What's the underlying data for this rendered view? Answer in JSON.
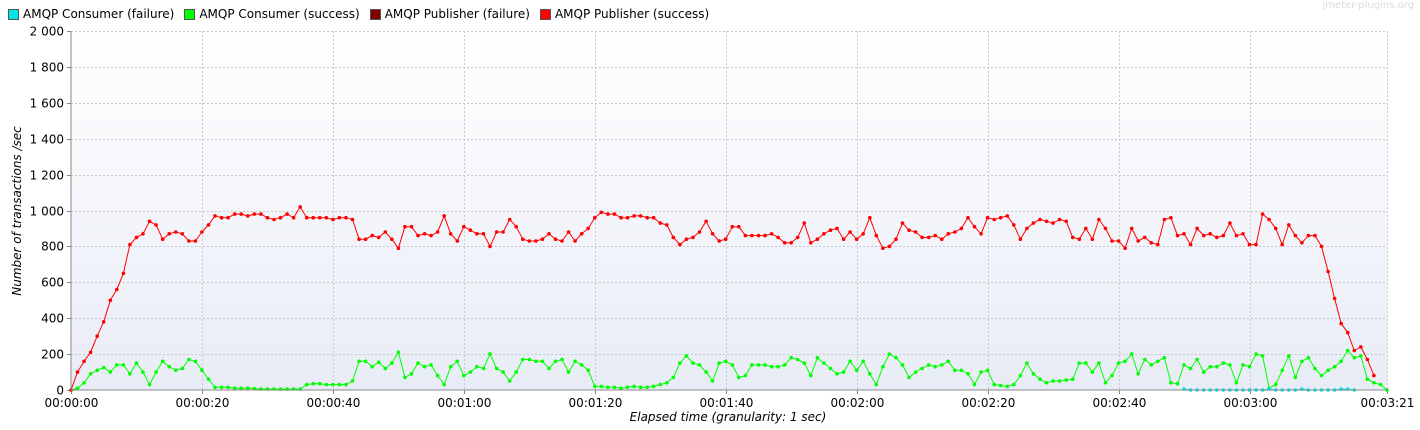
{
  "chart_data": {
    "type": "line",
    "watermark": "jmeter-plugins.org",
    "xlabel": "Elapsed time (granularity: 1 sec)",
    "ylabel": "Number of transactions /sec",
    "ylim": [
      0,
      2000
    ],
    "yticks": [
      0,
      200,
      400,
      600,
      800,
      1000,
      1200,
      1400,
      1600,
      1800,
      2000
    ],
    "ytick_labels": [
      "0",
      "200",
      "400",
      "600",
      "800",
      "1 000",
      "1 200",
      "1 400",
      "1 600",
      "1 800",
      "2 000"
    ],
    "xlim_seconds": [
      0,
      201
    ],
    "xticks_seconds": [
      0,
      20,
      40,
      60,
      80,
      100,
      120,
      140,
      160,
      180,
      201
    ],
    "xtick_labels": [
      "00:00:00",
      "00:00:20",
      "00:00:40",
      "00:01:00",
      "00:01:20",
      "00:01:40",
      "00:02:00",
      "00:02:20",
      "00:02:40",
      "00:03:00",
      "00:03:21"
    ],
    "grid": true,
    "legend_position": "top-left",
    "series": [
      {
        "name": "AMQP Consumer (failure)",
        "color": "#00e5e5",
        "x": [
          170,
          171,
          172,
          173,
          174,
          175,
          176,
          177,
          178,
          179,
          180,
          181,
          182,
          183,
          184,
          185,
          186,
          187,
          188,
          189,
          190,
          191,
          192,
          193,
          194,
          195,
          196
        ],
        "values": [
          5,
          0,
          0,
          0,
          0,
          0,
          0,
          0,
          0,
          0,
          0,
          0,
          0,
          5,
          0,
          0,
          0,
          0,
          5,
          0,
          0,
          0,
          0,
          0,
          5,
          5,
          0
        ]
      },
      {
        "name": "AMQP Consumer (success)",
        "color": "#00ff00",
        "values": [
          0,
          10,
          40,
          90,
          110,
          125,
          100,
          140,
          140,
          90,
          150,
          100,
          30,
          100,
          160,
          130,
          110,
          120,
          170,
          160,
          110,
          60,
          15,
          15,
          15,
          10,
          10,
          10,
          8,
          5,
          5,
          5,
          5,
          5,
          5,
          5,
          30,
          35,
          35,
          30,
          30,
          30,
          30,
          50,
          160,
          160,
          130,
          155,
          120,
          150,
          210,
          70,
          90,
          150,
          130,
          140,
          80,
          30,
          130,
          160,
          80,
          100,
          130,
          120,
          200,
          120,
          100,
          50,
          100,
          170,
          170,
          160,
          160,
          120,
          160,
          170,
          100,
          160,
          140,
          110,
          20,
          20,
          15,
          15,
          10,
          15,
          20,
          15,
          15,
          20,
          30,
          40,
          70,
          150,
          190,
          150,
          140,
          100,
          50,
          150,
          160,
          140,
          70,
          80,
          140,
          140,
          140,
          130,
          130,
          140,
          180,
          170,
          150,
          80,
          180,
          150,
          120,
          90,
          100,
          160,
          110,
          160,
          90,
          30,
          130,
          200,
          180,
          140,
          70,
          100,
          120,
          140,
          130,
          140,
          160,
          110,
          110,
          90,
          30,
          100,
          110,
          30,
          25,
          20,
          30,
          80,
          150,
          90,
          60,
          40,
          50,
          50,
          55,
          60,
          150,
          150,
          100,
          150,
          40,
          80,
          150,
          160,
          200,
          90,
          170,
          140,
          160,
          180,
          40,
          35,
          140,
          120,
          170,
          100,
          130,
          130,
          150,
          140,
          40,
          140,
          130,
          200,
          190,
          10,
          30,
          110,
          190,
          70,
          160,
          180,
          120,
          80,
          110,
          130,
          160,
          220,
          180,
          190,
          60,
          40,
          30,
          0
        ]
      },
      {
        "name": "AMQP Publisher (failure)",
        "color": "#800000",
        "values": []
      },
      {
        "name": "AMQP Publisher (success)",
        "color": "#ff0000",
        "values": [
          0,
          100,
          160,
          210,
          300,
          380,
          500,
          560,
          650,
          810,
          850,
          870,
          940,
          920,
          840,
          870,
          880,
          870,
          830,
          830,
          880,
          920,
          970,
          960,
          960,
          980,
          980,
          970,
          980,
          980,
          960,
          950,
          960,
          980,
          960,
          1020,
          960,
          960,
          960,
          960,
          950,
          960,
          960,
          950,
          840,
          840,
          860,
          850,
          880,
          840,
          790,
          910,
          910,
          860,
          870,
          860,
          880,
          970,
          870,
          830,
          910,
          890,
          870,
          870,
          800,
          880,
          880,
          950,
          910,
          840,
          830,
          830,
          840,
          870,
          840,
          830,
          880,
          830,
          870,
          900,
          960,
          990,
          980,
          980,
          960,
          960,
          970,
          970,
          960,
          960,
          930,
          920,
          850,
          810,
          840,
          850,
          880,
          940,
          870,
          830,
          840,
          910,
          910,
          860,
          860,
          860,
          860,
          870,
          850,
          820,
          820,
          850,
          930,
          820,
          840,
          870,
          890,
          900,
          840,
          880,
          840,
          870,
          960,
          860,
          790,
          800,
          840,
          930,
          890,
          880,
          850,
          850,
          860,
          840,
          870,
          880,
          900,
          960,
          910,
          870,
          960,
          950,
          960,
          970,
          920,
          840,
          900,
          930,
          950,
          940,
          930,
          950,
          940,
          850,
          840,
          900,
          840,
          950,
          900,
          830,
          830,
          790,
          900,
          830,
          850,
          820,
          810,
          950,
          960,
          860,
          870,
          810,
          900,
          860,
          870,
          850,
          860,
          930,
          860,
          870,
          810,
          810,
          980,
          950,
          900,
          810,
          920,
          860,
          820,
          860,
          860,
          800,
          660,
          510,
          370,
          320,
          220,
          240,
          170,
          80
        ]
      }
    ]
  }
}
